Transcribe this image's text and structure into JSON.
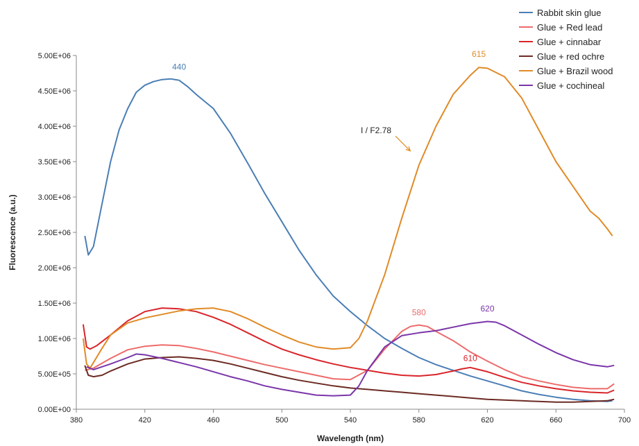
{
  "chart_data": {
    "type": "line",
    "xlabel": "Wavelength (nm)",
    "ylabel": "Fluorescence (a.u.)",
    "xlim": [
      380,
      700
    ],
    "ylim": [
      0,
      5000000
    ],
    "x_ticks": [
      380,
      420,
      460,
      500,
      540,
      580,
      620,
      660,
      700
    ],
    "y_ticks": [
      0,
      500000,
      1000000,
      1500000,
      2000000,
      2500000,
      3000000,
      3500000,
      4000000,
      4500000,
      5000000
    ],
    "y_tick_labels": [
      "0.00E+00",
      "5.00E+05",
      "1.00E+06",
      "1.50E+06",
      "2.00E+06",
      "2.50E+06",
      "3.00E+06",
      "3.50E+06",
      "4.00E+06",
      "4.50E+06",
      "5.00E+06"
    ],
    "grid": false,
    "legend_position": "top-right",
    "series": [
      {
        "name": "Rabbit skin glue",
        "color": "#4a7eb5",
        "points": [
          [
            385,
            2450000
          ],
          [
            387,
            2180000
          ],
          [
            390,
            2300000
          ],
          [
            395,
            2900000
          ],
          [
            400,
            3500000
          ],
          [
            405,
            3950000
          ],
          [
            410,
            4250000
          ],
          [
            415,
            4480000
          ],
          [
            420,
            4580000
          ],
          [
            425,
            4630000
          ],
          [
            430,
            4660000
          ],
          [
            435,
            4670000
          ],
          [
            440,
            4650000
          ],
          [
            445,
            4560000
          ],
          [
            450,
            4450000
          ],
          [
            460,
            4250000
          ],
          [
            470,
            3900000
          ],
          [
            480,
            3480000
          ],
          [
            490,
            3050000
          ],
          [
            500,
            2650000
          ],
          [
            510,
            2250000
          ],
          [
            520,
            1900000
          ],
          [
            530,
            1600000
          ],
          [
            540,
            1380000
          ],
          [
            550,
            1180000
          ],
          [
            560,
            1000000
          ],
          [
            570,
            860000
          ],
          [
            580,
            730000
          ],
          [
            590,
            630000
          ],
          [
            600,
            550000
          ],
          [
            610,
            470000
          ],
          [
            620,
            400000
          ],
          [
            630,
            330000
          ],
          [
            640,
            260000
          ],
          [
            650,
            210000
          ],
          [
            660,
            170000
          ],
          [
            670,
            140000
          ],
          [
            680,
            120000
          ],
          [
            690,
            110000
          ],
          [
            693,
            120000
          ]
        ]
      },
      {
        "name": "Glue + Red lead",
        "color": "#ee6a6a",
        "points": [
          [
            385,
            550000
          ],
          [
            390,
            580000
          ],
          [
            400,
            720000
          ],
          [
            410,
            840000
          ],
          [
            420,
            890000
          ],
          [
            430,
            910000
          ],
          [
            440,
            900000
          ],
          [
            450,
            860000
          ],
          [
            460,
            810000
          ],
          [
            470,
            750000
          ],
          [
            480,
            690000
          ],
          [
            490,
            630000
          ],
          [
            500,
            580000
          ],
          [
            510,
            530000
          ],
          [
            520,
            480000
          ],
          [
            530,
            430000
          ],
          [
            540,
            420000
          ],
          [
            550,
            550000
          ],
          [
            560,
            850000
          ],
          [
            570,
            1100000
          ],
          [
            575,
            1170000
          ],
          [
            580,
            1190000
          ],
          [
            585,
            1170000
          ],
          [
            590,
            1100000
          ],
          [
            600,
            970000
          ],
          [
            610,
            810000
          ],
          [
            620,
            680000
          ],
          [
            630,
            560000
          ],
          [
            640,
            460000
          ],
          [
            650,
            400000
          ],
          [
            660,
            350000
          ],
          [
            670,
            310000
          ],
          [
            680,
            290000
          ],
          [
            690,
            290000
          ],
          [
            694,
            360000
          ]
        ]
      },
      {
        "name": "Glue + cinnabar",
        "color": "#d9242a",
        "points": [
          [
            384,
            1200000
          ],
          [
            386,
            880000
          ],
          [
            388,
            850000
          ],
          [
            392,
            900000
          ],
          [
            400,
            1050000
          ],
          [
            410,
            1250000
          ],
          [
            420,
            1380000
          ],
          [
            430,
            1430000
          ],
          [
            440,
            1420000
          ],
          [
            450,
            1380000
          ],
          [
            460,
            1300000
          ],
          [
            470,
            1200000
          ],
          [
            480,
            1080000
          ],
          [
            490,
            960000
          ],
          [
            500,
            850000
          ],
          [
            510,
            770000
          ],
          [
            520,
            700000
          ],
          [
            530,
            640000
          ],
          [
            540,
            590000
          ],
          [
            550,
            550000
          ],
          [
            560,
            510000
          ],
          [
            570,
            480000
          ],
          [
            580,
            470000
          ],
          [
            590,
            490000
          ],
          [
            600,
            540000
          ],
          [
            605,
            570000
          ],
          [
            610,
            590000
          ],
          [
            615,
            560000
          ],
          [
            620,
            530000
          ],
          [
            630,
            450000
          ],
          [
            640,
            380000
          ],
          [
            650,
            330000
          ],
          [
            660,
            290000
          ],
          [
            670,
            260000
          ],
          [
            680,
            240000
          ],
          [
            690,
            230000
          ],
          [
            694,
            270000
          ]
        ]
      },
      {
        "name": "Glue + red ochre",
        "color": "#6b2a22",
        "points": [
          [
            385,
            620000
          ],
          [
            387,
            480000
          ],
          [
            390,
            460000
          ],
          [
            395,
            480000
          ],
          [
            400,
            540000
          ],
          [
            410,
            640000
          ],
          [
            420,
            710000
          ],
          [
            430,
            730000
          ],
          [
            440,
            740000
          ],
          [
            450,
            720000
          ],
          [
            460,
            690000
          ],
          [
            470,
            640000
          ],
          [
            480,
            580000
          ],
          [
            490,
            520000
          ],
          [
            500,
            460000
          ],
          [
            510,
            410000
          ],
          [
            520,
            370000
          ],
          [
            530,
            330000
          ],
          [
            540,
            300000
          ],
          [
            550,
            280000
          ],
          [
            560,
            260000
          ],
          [
            570,
            240000
          ],
          [
            580,
            220000
          ],
          [
            590,
            200000
          ],
          [
            600,
            180000
          ],
          [
            610,
            160000
          ],
          [
            620,
            140000
          ],
          [
            630,
            130000
          ],
          [
            640,
            120000
          ],
          [
            650,
            110000
          ],
          [
            660,
            100000
          ],
          [
            670,
            100000
          ],
          [
            680,
            110000
          ],
          [
            690,
            120000
          ],
          [
            694,
            140000
          ]
        ]
      },
      {
        "name": "Glue + Brazil wood",
        "color": "#e08a26",
        "points": [
          [
            384,
            1000000
          ],
          [
            386,
            640000
          ],
          [
            388,
            580000
          ],
          [
            395,
            860000
          ],
          [
            400,
            1050000
          ],
          [
            410,
            1220000
          ],
          [
            420,
            1290000
          ],
          [
            430,
            1340000
          ],
          [
            440,
            1390000
          ],
          [
            450,
            1420000
          ],
          [
            460,
            1430000
          ],
          [
            470,
            1380000
          ],
          [
            480,
            1280000
          ],
          [
            490,
            1160000
          ],
          [
            500,
            1050000
          ],
          [
            510,
            950000
          ],
          [
            520,
            880000
          ],
          [
            530,
            850000
          ],
          [
            540,
            870000
          ],
          [
            545,
            1000000
          ],
          [
            550,
            1250000
          ],
          [
            560,
            1900000
          ],
          [
            570,
            2700000
          ],
          [
            580,
            3450000
          ],
          [
            590,
            4000000
          ],
          [
            600,
            4450000
          ],
          [
            610,
            4720000
          ],
          [
            615,
            4830000
          ],
          [
            620,
            4820000
          ],
          [
            630,
            4700000
          ],
          [
            640,
            4400000
          ],
          [
            650,
            3950000
          ],
          [
            660,
            3500000
          ],
          [
            670,
            3150000
          ],
          [
            680,
            2800000
          ],
          [
            685,
            2700000
          ],
          [
            690,
            2550000
          ],
          [
            693,
            2450000
          ]
        ]
      },
      {
        "name": "Glue + cochineal",
        "color": "#7a35a8",
        "points": [
          [
            386,
            600000
          ],
          [
            390,
            560000
          ],
          [
            400,
            640000
          ],
          [
            410,
            730000
          ],
          [
            415,
            780000
          ],
          [
            420,
            770000
          ],
          [
            430,
            720000
          ],
          [
            440,
            660000
          ],
          [
            450,
            600000
          ],
          [
            460,
            530000
          ],
          [
            470,
            460000
          ],
          [
            480,
            400000
          ],
          [
            490,
            330000
          ],
          [
            500,
            280000
          ],
          [
            510,
            240000
          ],
          [
            520,
            200000
          ],
          [
            530,
            190000
          ],
          [
            540,
            200000
          ],
          [
            545,
            330000
          ],
          [
            550,
            550000
          ],
          [
            560,
            880000
          ],
          [
            570,
            1040000
          ],
          [
            580,
            1080000
          ],
          [
            590,
            1110000
          ],
          [
            600,
            1160000
          ],
          [
            610,
            1210000
          ],
          [
            620,
            1240000
          ],
          [
            625,
            1230000
          ],
          [
            630,
            1180000
          ],
          [
            640,
            1050000
          ],
          [
            650,
            920000
          ],
          [
            660,
            800000
          ],
          [
            670,
            700000
          ],
          [
            680,
            630000
          ],
          [
            690,
            600000
          ],
          [
            694,
            620000
          ]
        ]
      }
    ],
    "annotations": [
      {
        "text": "440",
        "x": 440,
        "y": 4800000,
        "series": 0
      },
      {
        "text": "615",
        "x": 615,
        "y": 4980000,
        "series": 4
      },
      {
        "text": "580",
        "x": 580,
        "y": 1330000,
        "series": 1
      },
      {
        "text": "620",
        "x": 620,
        "y": 1380000,
        "series": 5
      },
      {
        "text": "610",
        "x": 610,
        "y": 680000,
        "series": 2
      }
    ],
    "note": {
      "text": "I / F2.78",
      "x": 555,
      "y": 3900000,
      "arrow_to": [
        575,
        3650000
      ]
    }
  }
}
